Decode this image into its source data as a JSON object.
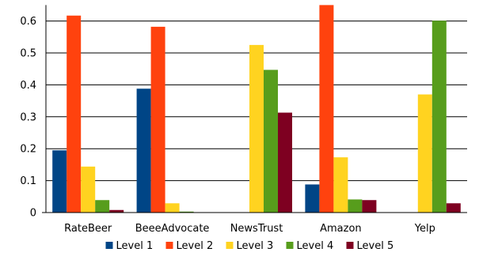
{
  "chart_data": {
    "type": "bar",
    "title": "",
    "xlabel": "",
    "ylabel": "",
    "ylim": [
      0,
      0.65
    ],
    "yticks": [
      "0",
      "0.1",
      "0.2",
      "0.3",
      "0.4",
      "0.5",
      "0.6"
    ],
    "grid": true,
    "legend_position": "bottom",
    "categories": [
      "RateBeer",
      "BeeeAdvocate",
      "NewsTrust",
      "Amazon",
      "Yelp"
    ],
    "series": [
      {
        "name": "Level 1",
        "color": "#004586",
        "values": [
          0.195,
          0.388,
          0.0,
          0.088,
          0.0
        ]
      },
      {
        "name": "Level 2",
        "color": "#ff420e",
        "values": [
          0.617,
          0.582,
          0.0,
          0.65,
          0.0
        ]
      },
      {
        "name": "Level 3",
        "color": "#ffd320",
        "values": [
          0.144,
          0.029,
          0.525,
          0.173,
          0.37
        ]
      },
      {
        "name": "Level 4",
        "color": "#579d1c",
        "values": [
          0.039,
          0.003,
          0.447,
          0.041,
          0.601
        ]
      },
      {
        "name": "Level 5",
        "color": "#7e0021",
        "values": [
          0.008,
          0.001,
          0.313,
          0.039,
          0.029
        ]
      }
    ]
  }
}
